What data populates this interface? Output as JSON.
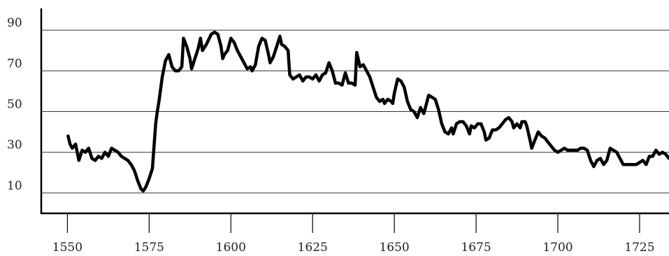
{
  "chart_data": {
    "type": "line",
    "title": "",
    "xlabel": "",
    "ylabel": "",
    "xlim": [
      1542,
      1734
    ],
    "ylim": [
      0,
      100
    ],
    "x_ticks": [
      1550,
      1575,
      1600,
      1625,
      1650,
      1675,
      1700,
      1725
    ],
    "y_ticks": [
      10,
      30,
      50,
      70,
      90
    ],
    "grid": "horizontal",
    "legend": "none",
    "series": [
      {
        "color": "#000000",
        "points": [
          [
            1550.2,
            38
          ],
          [
            1550.8,
            34
          ],
          [
            1551.5,
            32
          ],
          [
            1552.5,
            34
          ],
          [
            1553.5,
            26
          ],
          [
            1554.5,
            31
          ],
          [
            1555.5,
            30
          ],
          [
            1556.5,
            32
          ],
          [
            1557.5,
            27
          ],
          [
            1558.5,
            26
          ],
          [
            1559.5,
            28
          ],
          [
            1560.5,
            27
          ],
          [
            1561.5,
            30
          ],
          [
            1562.5,
            28
          ],
          [
            1563.5,
            32
          ],
          [
            1564.5,
            31
          ],
          [
            1565.5,
            30
          ],
          [
            1566.5,
            28
          ],
          [
            1567.5,
            27
          ],
          [
            1568.5,
            26
          ],
          [
            1569.5,
            24
          ],
          [
            1570.5,
            21
          ],
          [
            1571.5,
            16
          ],
          [
            1572.5,
            12
          ],
          [
            1573.2,
            11
          ],
          [
            1574,
            13
          ],
          [
            1575,
            17
          ],
          [
            1576,
            22
          ],
          [
            1577,
            44
          ],
          [
            1577.5,
            50
          ],
          [
            1578,
            55
          ],
          [
            1579,
            67
          ],
          [
            1580,
            75
          ],
          [
            1581,
            78
          ],
          [
            1582,
            72
          ],
          [
            1583,
            70
          ],
          [
            1584,
            70
          ],
          [
            1585,
            72
          ],
          [
            1585.5,
            86
          ],
          [
            1586.5,
            82
          ],
          [
            1587.5,
            76
          ],
          [
            1588,
            71
          ],
          [
            1589,
            76
          ],
          [
            1590,
            81
          ],
          [
            1590.7,
            86
          ],
          [
            1591.3,
            80
          ],
          [
            1592.5,
            83
          ],
          [
            1594,
            88
          ],
          [
            1595,
            89
          ],
          [
            1596,
            88
          ],
          [
            1597,
            82
          ],
          [
            1597.5,
            76
          ],
          [
            1598,
            78
          ],
          [
            1599,
            80
          ],
          [
            1600,
            86
          ],
          [
            1601,
            84
          ],
          [
            1602,
            80
          ],
          [
            1603,
            77
          ],
          [
            1604,
            74
          ],
          [
            1605,
            71
          ],
          [
            1606,
            72
          ],
          [
            1606.5,
            70
          ],
          [
            1607.5,
            73
          ],
          [
            1608.5,
            82
          ],
          [
            1609.5,
            86
          ],
          [
            1610.5,
            85
          ],
          [
            1611.5,
            78
          ],
          [
            1612,
            74
          ],
          [
            1613,
            77
          ],
          [
            1614,
            82
          ],
          [
            1615,
            87
          ],
          [
            1615.5,
            83
          ],
          [
            1616.5,
            82
          ],
          [
            1617.5,
            80
          ],
          [
            1618,
            68
          ],
          [
            1619,
            66
          ],
          [
            1620,
            67
          ],
          [
            1621,
            68
          ],
          [
            1622,
            65
          ],
          [
            1623,
            67
          ],
          [
            1624,
            67
          ],
          [
            1625,
            66
          ],
          [
            1626,
            68
          ],
          [
            1627,
            65
          ],
          [
            1628,
            68
          ],
          [
            1629,
            69
          ],
          [
            1630,
            74
          ],
          [
            1631,
            70
          ],
          [
            1632,
            64
          ],
          [
            1633,
            64
          ],
          [
            1634,
            63
          ],
          [
            1635,
            69
          ],
          [
            1636,
            64
          ],
          [
            1637,
            64
          ],
          [
            1638,
            63
          ],
          [
            1638.5,
            79
          ],
          [
            1639.5,
            72
          ],
          [
            1640.5,
            73
          ],
          [
            1641.5,
            70
          ],
          [
            1642.5,
            67
          ],
          [
            1643.5,
            62
          ],
          [
            1644.5,
            57
          ],
          [
            1645.5,
            55
          ],
          [
            1646.5,
            56
          ],
          [
            1647,
            54
          ],
          [
            1648,
            56
          ],
          [
            1649,
            55
          ],
          [
            1649.5,
            54
          ],
          [
            1650,
            59
          ],
          [
            1651,
            66
          ],
          [
            1652,
            65
          ],
          [
            1653,
            62
          ],
          [
            1654,
            55
          ],
          [
            1655,
            51
          ],
          [
            1656,
            50
          ],
          [
            1657,
            47
          ],
          [
            1658,
            52
          ],
          [
            1659,
            49
          ],
          [
            1659.5,
            52
          ],
          [
            1660.5,
            58
          ],
          [
            1661.5,
            57
          ],
          [
            1662.5,
            56
          ],
          [
            1663.5,
            51
          ],
          [
            1664.5,
            44
          ],
          [
            1665.5,
            40
          ],
          [
            1666.5,
            39
          ],
          [
            1667.5,
            42
          ],
          [
            1668,
            39
          ],
          [
            1669,
            44
          ],
          [
            1670,
            45
          ],
          [
            1671,
            45
          ],
          [
            1672,
            43
          ],
          [
            1673,
            39
          ],
          [
            1673.5,
            43
          ],
          [
            1674.5,
            42
          ],
          [
            1675.5,
            44
          ],
          [
            1676.5,
            44
          ],
          [
            1677.5,
            40
          ],
          [
            1678,
            36
          ],
          [
            1679,
            37
          ],
          [
            1680,
            41
          ],
          [
            1681,
            41
          ],
          [
            1682,
            42
          ],
          [
            1683,
            44
          ],
          [
            1684,
            46
          ],
          [
            1685,
            47
          ],
          [
            1686,
            45
          ],
          [
            1686.5,
            42
          ],
          [
            1687.5,
            44
          ],
          [
            1688.5,
            42
          ],
          [
            1689,
            45
          ],
          [
            1690,
            45
          ],
          [
            1690.5,
            43
          ],
          [
            1691.5,
            36
          ],
          [
            1692,
            32
          ],
          [
            1693,
            36
          ],
          [
            1694,
            40
          ],
          [
            1695,
            38
          ],
          [
            1696,
            37
          ],
          [
            1697,
            35
          ],
          [
            1698,
            33
          ],
          [
            1699,
            31
          ],
          [
            1700,
            30
          ],
          [
            1701,
            31
          ],
          [
            1702,
            32
          ],
          [
            1703,
            31
          ],
          [
            1704,
            31
          ],
          [
            1705,
            31
          ],
          [
            1706,
            31
          ],
          [
            1707,
            32
          ],
          [
            1708,
            32
          ],
          [
            1709,
            31
          ],
          [
            1710,
            26
          ],
          [
            1711,
            23
          ],
          [
            1712,
            26
          ],
          [
            1713,
            27
          ],
          [
            1714,
            24
          ],
          [
            1715,
            26
          ],
          [
            1716,
            32
          ],
          [
            1717,
            31
          ],
          [
            1718,
            30
          ],
          [
            1719,
            27
          ],
          [
            1720,
            24
          ],
          [
            1721,
            24
          ],
          [
            1722,
            24
          ],
          [
            1723,
            24
          ],
          [
            1724,
            24
          ],
          [
            1725,
            25
          ],
          [
            1726,
            26
          ],
          [
            1727,
            24
          ],
          [
            1728,
            28
          ],
          [
            1729,
            28
          ],
          [
            1730,
            31
          ],
          [
            1731,
            29
          ],
          [
            1732,
            30
          ],
          [
            1733,
            29
          ],
          [
            1734,
            27
          ]
        ]
      }
    ]
  }
}
